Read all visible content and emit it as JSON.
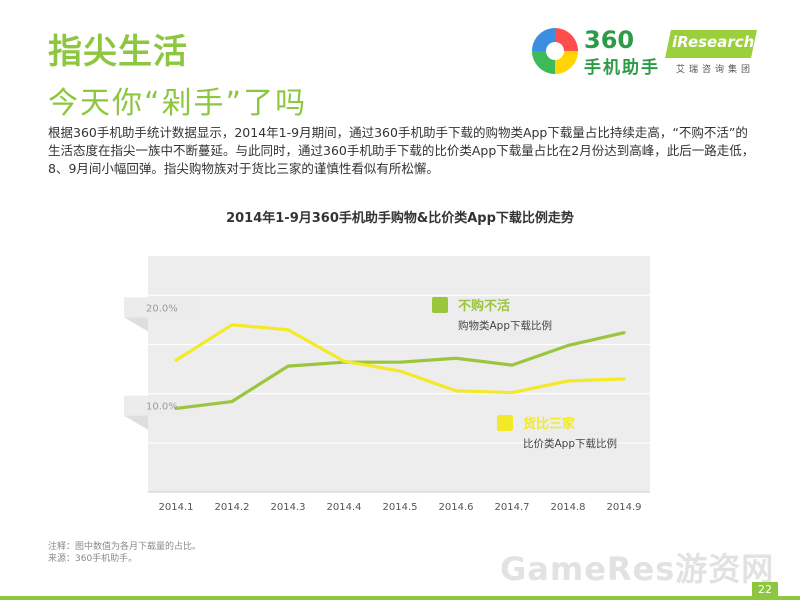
{
  "header": {
    "title": "指尖生活",
    "subtitle": "今天你“剁手”了吗"
  },
  "logos": {
    "brand_360_num": "360",
    "brand_360_cn": "手机助手",
    "iresearch_name": "iResearch",
    "iresearch_cn": "艾瑞咨询集团"
  },
  "description": "根据360手机助手统计数据显示，2014年1-9月期间，通过360手机助手下载的购物类App下载量占比持续走高，“不购不活”的生活态度在指尖一族中不断蔓延。与此同时，通过360手机助手下载的比价类App下载量占比在2月份达到高峰，此后一路走低，8、9月间小幅回弹。指尖购物族对于货比三家的谨慎性看似有所松懈。",
  "chart_data": {
    "type": "line",
    "title": "2014年1-9月360手机助手购物&比价类App下载比例走势",
    "x": [
      "2014.1",
      "2014.2",
      "2014.3",
      "2014.4",
      "2014.5",
      "2014.6",
      "2014.7",
      "2014.8",
      "2014.9"
    ],
    "ylim": [
      0,
      24
    ],
    "y_tick_labels": [
      {
        "value": 20,
        "label": "20.0%"
      },
      {
        "value": 10,
        "label": "10.0%"
      }
    ],
    "grid": true,
    "series": [
      {
        "name": "不购不活",
        "description": "购物类App下载比例",
        "color": "#9bc53d",
        "values": [
          8.5,
          9.2,
          12.8,
          13.2,
          13.2,
          13.6,
          12.9,
          14.9,
          16.2
        ]
      },
      {
        "name": "货比三家",
        "description": "比价类App下载比例",
        "color": "#f2ea28",
        "values": [
          13.4,
          17.0,
          16.5,
          13.3,
          12.3,
          10.3,
          10.1,
          11.3,
          11.5
        ]
      }
    ]
  },
  "footer": {
    "note": "注释：图中数值为各月下载量的占比。",
    "source": "来源：360手机助手。",
    "watermark": "GameRes游资网",
    "page_number": "22"
  }
}
